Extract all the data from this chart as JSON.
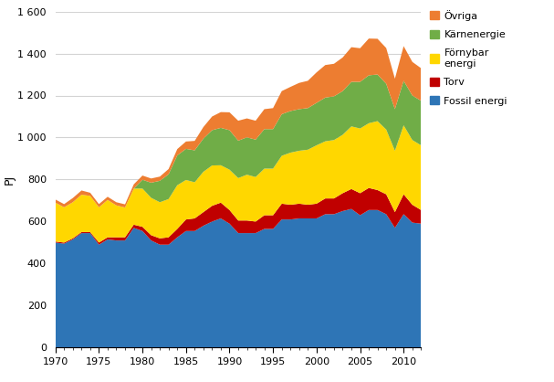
{
  "years": [
    1970,
    1971,
    1972,
    1973,
    1974,
    1975,
    1976,
    1977,
    1978,
    1979,
    1980,
    1981,
    1982,
    1983,
    1984,
    1985,
    1986,
    1987,
    1988,
    1989,
    1990,
    1991,
    1992,
    1993,
    1994,
    1995,
    1996,
    1997,
    1998,
    1999,
    2000,
    2001,
    2002,
    2003,
    2004,
    2005,
    2006,
    2007,
    2008,
    2009,
    2010,
    2011,
    2012
  ],
  "fossil_energi": [
    500,
    495,
    515,
    545,
    545,
    490,
    515,
    510,
    510,
    570,
    555,
    510,
    490,
    490,
    525,
    555,
    555,
    580,
    600,
    615,
    590,
    545,
    545,
    545,
    565,
    565,
    610,
    610,
    615,
    615,
    615,
    635,
    635,
    650,
    660,
    630,
    655,
    655,
    635,
    570,
    635,
    595,
    590
  ],
  "torv": [
    5,
    5,
    5,
    5,
    5,
    10,
    10,
    15,
    15,
    15,
    20,
    25,
    30,
    35,
    40,
    55,
    60,
    65,
    75,
    75,
    65,
    60,
    60,
    55,
    65,
    65,
    75,
    70,
    70,
    65,
    70,
    75,
    75,
    85,
    95,
    105,
    105,
    95,
    95,
    75,
    95,
    85,
    65
  ],
  "fornybar_energi": [
    185,
    168,
    172,
    178,
    172,
    168,
    178,
    152,
    142,
    172,
    182,
    178,
    172,
    182,
    208,
    188,
    172,
    192,
    192,
    178,
    192,
    202,
    218,
    212,
    222,
    222,
    228,
    248,
    252,
    262,
    278,
    272,
    278,
    278,
    298,
    308,
    308,
    328,
    308,
    292,
    328,
    308,
    308
  ],
  "karnenergie": [
    0,
    0,
    0,
    0,
    0,
    0,
    0,
    0,
    0,
    0,
    42,
    72,
    102,
    118,
    142,
    148,
    152,
    158,
    168,
    178,
    188,
    178,
    178,
    178,
    188,
    188,
    198,
    198,
    198,
    198,
    202,
    208,
    208,
    208,
    212,
    222,
    228,
    222,
    218,
    198,
    212,
    212,
    212
  ],
  "ovriga": [
    15,
    15,
    20,
    20,
    15,
    15,
    15,
    15,
    15,
    20,
    20,
    20,
    20,
    25,
    30,
    35,
    45,
    55,
    65,
    75,
    85,
    95,
    90,
    90,
    95,
    100,
    110,
    115,
    125,
    130,
    145,
    155,
    155,
    160,
    165,
    160,
    175,
    170,
    170,
    145,
    165,
    160,
    155
  ],
  "colors": {
    "fossil_energi": "#2E75B6",
    "torv": "#C00000",
    "fornybar_energi": "#FFD700",
    "karnenergie": "#70AD47",
    "ovriga": "#ED7D31"
  },
  "labels": {
    "fossil_energi": "Fossil energi",
    "torv": "Torv",
    "fornybar_energi": "Förnybar\nenergi",
    "karnenergie": "Kärnenergie",
    "ovriga": "Övriga"
  },
  "ylabel": "PJ",
  "ylim": [
    0,
    1600
  ],
  "yticks": [
    0,
    200,
    400,
    600,
    800,
    1000,
    1200,
    1400,
    1600
  ],
  "xlim": [
    1970,
    2012
  ],
  "xticks": [
    1970,
    1975,
    1980,
    1985,
    1990,
    1995,
    2000,
    2005,
    2010
  ]
}
